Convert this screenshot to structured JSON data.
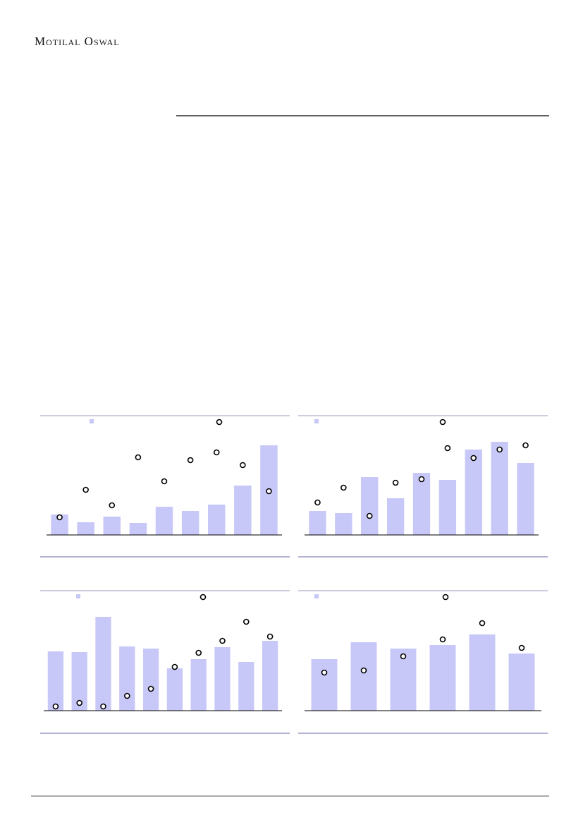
{
  "header": {
    "brand": "Motilal Oswal"
  },
  "chart_data": [
    {
      "type": "bar",
      "ylim": [
        0,
        170
      ],
      "bar_color": "#c8c8f8",
      "point_color": "#000000",
      "series": [
        {
          "values": [
            29,
            18,
            26,
            17,
            40,
            34,
            43,
            70,
            127
          ]
        },
        {
          "values": [
            25,
            64,
            42,
            110,
            76,
            106,
            117,
            99,
            62
          ]
        }
      ]
    },
    {
      "type": "bar",
      "ylim": [
        0,
        170
      ],
      "bar_color": "#c8c8f8",
      "point_color": "#000000",
      "series": [
        {
          "values": [
            34,
            31,
            82,
            52,
            88,
            78,
            121,
            132,
            102
          ]
        },
        {
          "values": [
            46,
            67,
            27,
            74,
            79,
            123,
            109,
            121,
            127
          ]
        }
      ]
    },
    {
      "type": "bar",
      "ylim": [
        0,
        170
      ],
      "bar_color": "#c8c8f8",
      "point_color": "#000000",
      "series": [
        {
          "values": [
            84,
            83,
            133,
            91,
            88,
            60,
            73,
            90,
            69,
            99
          ]
        },
        {
          "values": [
            6,
            11,
            6,
            21,
            31,
            62,
            82,
            99,
            126,
            105
          ]
        }
      ]
    },
    {
      "type": "bar",
      "ylim": [
        0,
        170
      ],
      "bar_color": "#c8c8f8",
      "point_color": "#000000",
      "series": [
        {
          "values": [
            73,
            97,
            88,
            93,
            108,
            81
          ]
        },
        {
          "values": [
            54,
            57,
            77,
            101,
            124,
            89
          ]
        }
      ]
    }
  ]
}
